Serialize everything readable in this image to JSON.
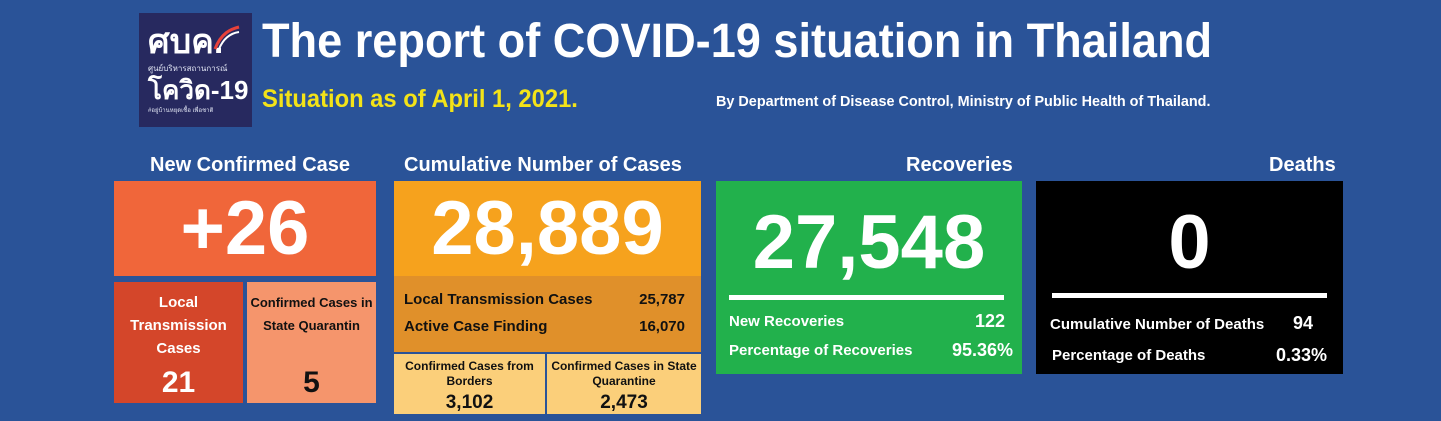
{
  "logo": {
    "line1": "ศบค.",
    "line2": "ศูนย์บริหารสถานการณ์",
    "line3": "โควิด-19",
    "line4": "#อยู่บ้านหยุดเชื้อ เพื่อชาติ"
  },
  "header": {
    "title": "The report of COVID-19 situation in Thailand",
    "subtitle": "Situation as of April 1, 2021.",
    "byline": "By Department of Disease Control, Ministry of Public Health of Thailand."
  },
  "new_confirmed": {
    "heading": "New Confirmed Case",
    "value": "+26",
    "local_label": "Local Transmission Cases",
    "local_value": "21",
    "quarantine_label": "Confirmed Cases in State Quarantin",
    "quarantine_value": "5"
  },
  "cumulative": {
    "heading": "Cumulative Number of Cases",
    "value": "28,889",
    "local_label": "Local Transmission Cases",
    "local_value": "25,787",
    "active_label": "Active Case Finding",
    "active_value": "16,070",
    "borders_label": "Confirmed Cases from Borders",
    "borders_value": "3,102",
    "quarantine_label": "Confirmed Cases in State Quarantine",
    "quarantine_value": "2,473"
  },
  "recoveries": {
    "heading": "Recoveries",
    "value": "27,548",
    "new_label": "New Recoveries",
    "new_value": "122",
    "pct_label": "Percentage of Recoveries",
    "pct_value": "95.36%"
  },
  "deaths": {
    "heading": "Deaths",
    "value": "0",
    "cum_label": "Cumulative Number of Deaths",
    "cum_value": "94",
    "pct_label": "Percentage of Deaths",
    "pct_value": "0.33%"
  },
  "colors": {
    "background": "#2a5398",
    "new_case": "#f0663a",
    "local": "#d4462a",
    "quarantine": "#f5956c",
    "cumulative": "#f6a21d",
    "cumulative_sub": "#e0902a",
    "cumulative_light": "#fbcf7a",
    "recoveries": "#22b14c",
    "deaths": "#000000",
    "subtitle": "#f3e318"
  }
}
